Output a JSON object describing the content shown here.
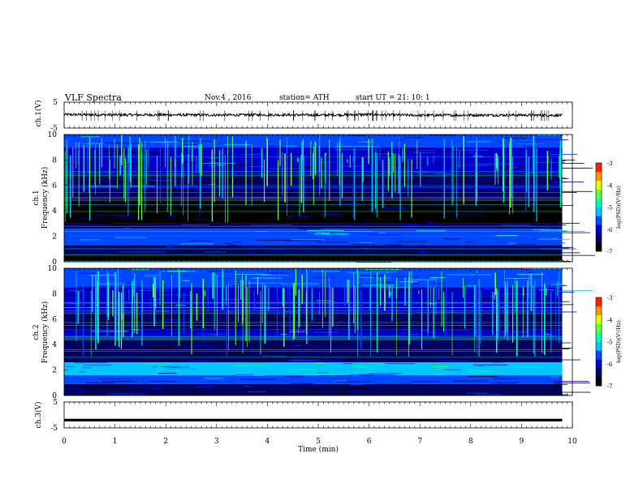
{
  "header": {
    "title": "VLF  Spectra",
    "date": "Nov.4  , 2016",
    "station": "station= ATH",
    "start": "start  UT  =    21: 10: 1"
  },
  "colors": {
    "spectrogram_scale": [
      "#000000",
      "#000060",
      "#0000c8",
      "#0048ff",
      "#00c8ff",
      "#00ffb4",
      "#64ff3c",
      "#e6ff00",
      "#ff9600",
      "#ff1e00",
      "#ffffff"
    ],
    "trace": "#000000"
  },
  "chart_data": [
    {
      "type": "line",
      "panel": "ch1-waveform",
      "ylabel": "ch.1(V)",
      "ylim": [
        -5,
        5
      ],
      "yticks": [
        "5",
        "-5"
      ],
      "xlim": [
        0,
        9.8
      ],
      "series": [
        {
          "x": [
            0,
            1,
            2,
            3,
            4,
            5,
            6,
            7,
            8,
            9,
            9.8
          ],
          "values": [
            0.2,
            0.1,
            0.1,
            0.0,
            0.1,
            0.0,
            0.2,
            -0.1,
            0.0,
            0.0,
            -0.1
          ]
        }
      ]
    },
    {
      "type": "heatmap",
      "panel": "ch1-spectrogram",
      "ylabel": "ch.1\nFrequency  (kHz)",
      "yticks": [
        "0",
        "2",
        "4",
        "6",
        "8",
        "10"
      ],
      "ylim": [
        0,
        10
      ],
      "xlim": [
        0,
        9.8
      ],
      "colorbar": {
        "label": "log(PSD)(V²/Hz)",
        "ticks": [
          "-3",
          "-4",
          "-5",
          "-6",
          "-7"
        ],
        "range": [
          -7,
          -3
        ]
      },
      "bands": [
        {
          "f": [
            9.0,
            10.0
          ],
          "level": -5.6
        },
        {
          "f": [
            7.0,
            9.0
          ],
          "level": -6.0
        },
        {
          "f": [
            6.0,
            7.0
          ],
          "level": -6.4
        },
        {
          "f": [
            5.7,
            6.0
          ],
          "level": -5.9
        },
        {
          "f": [
            4.9,
            5.7
          ],
          "level": -6.4
        },
        {
          "f": [
            3.0,
            4.9
          ],
          "level": -6.8
        },
        {
          "f": [
            2.6,
            3.0
          ],
          "level": -6.2
        },
        {
          "f": [
            2.0,
            2.6
          ],
          "level": -5.4
        },
        {
          "f": [
            1.3,
            2.0
          ],
          "level": -5.7
        },
        {
          "f": [
            0.6,
            1.3
          ],
          "level": -6.2
        },
        {
          "f": [
            0.0,
            0.6
          ],
          "level": -7.0
        }
      ]
    },
    {
      "type": "heatmap",
      "panel": "ch2-spectrogram",
      "ylabel": "ch.2\nFrequency  (kHz)",
      "yticks": [
        "0",
        "2",
        "4",
        "6",
        "8",
        "10"
      ],
      "ylim": [
        0,
        10
      ],
      "xlim": [
        0,
        9.8
      ],
      "colorbar": {
        "label": "log(PSD)(V²/Hz)",
        "ticks": [
          "-3",
          "-4",
          "-5",
          "-6",
          "-7"
        ],
        "range": [
          -7,
          -3
        ]
      },
      "bands": [
        {
          "f": [
            8.5,
            10.0
          ],
          "level": -5.4
        },
        {
          "f": [
            6.5,
            8.5
          ],
          "level": -6.0
        },
        {
          "f": [
            5.2,
            6.5
          ],
          "level": -6.5
        },
        {
          "f": [
            4.6,
            5.2
          ],
          "level": -5.9
        },
        {
          "f": [
            2.6,
            4.6
          ],
          "level": -6.4
        },
        {
          "f": [
            1.6,
            2.6
          ],
          "level": -5.2
        },
        {
          "f": [
            0.9,
            1.6
          ],
          "level": -5.8
        },
        {
          "f": [
            0.0,
            0.9
          ],
          "level": -6.4
        }
      ]
    },
    {
      "type": "line",
      "panel": "ch3-waveform",
      "ylabel": "ch.3(V)",
      "ylim": [
        -5,
        5
      ],
      "yticks": [
        "5",
        "-5"
      ],
      "xlim": [
        0,
        9.8
      ],
      "xlabel": "Time  (min)",
      "xticks": [
        "0",
        "1",
        "2",
        "3",
        "4",
        "5",
        "6",
        "7",
        "8",
        "9",
        "10"
      ],
      "series": [
        {
          "x": [
            0,
            9.8
          ],
          "values": [
            -2.0,
            -2.0
          ]
        }
      ]
    }
  ]
}
